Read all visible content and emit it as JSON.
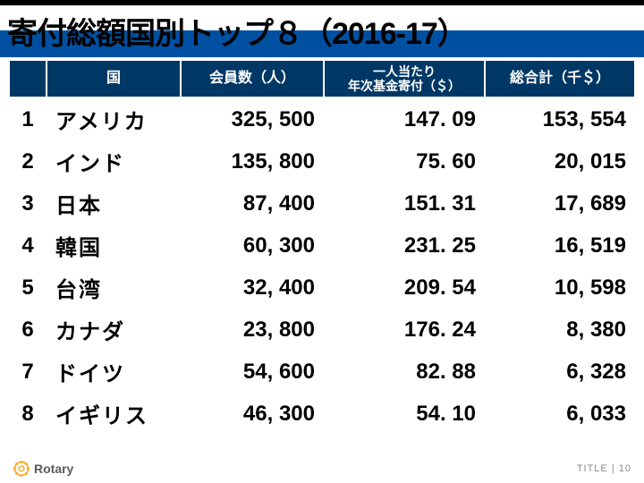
{
  "title": "寄付総額国別トップ８（2016-17）",
  "columns": {
    "rank": "",
    "country": "国",
    "members": "会員数（人）",
    "percap_l1": "一人当たり",
    "percap_l2": "年次基金寄付（＄）",
    "total": "総合計（千＄）"
  },
  "rows": [
    {
      "rank": "1",
      "country": "アメリカ",
      "members": "325, 500",
      "percap": "147. 09",
      "total": "153, 554"
    },
    {
      "rank": "2",
      "country": "インド",
      "members": "135, 800",
      "percap": "75. 60",
      "total": "20, 015"
    },
    {
      "rank": "3",
      "country": "日本",
      "members": "87, 400",
      "percap": "151. 31",
      "total": "17, 689"
    },
    {
      "rank": "4",
      "country": "韓国",
      "members": "60, 300",
      "percap": "231. 25",
      "total": "16, 519"
    },
    {
      "rank": "5",
      "country": "台湾",
      "members": "32, 400",
      "percap": "209. 54",
      "total": "10, 598"
    },
    {
      "rank": "6",
      "country": "カナダ",
      "members": "23, 800",
      "percap": "176. 24",
      "total": "8, 380"
    },
    {
      "rank": "7",
      "country": "ドイツ",
      "members": "54, 600",
      "percap": "82. 88",
      "total": "6, 328"
    },
    {
      "rank": "8",
      "country": "イギリス",
      "members": "46, 300",
      "percap": "54. 10",
      "total": "6, 033"
    }
  ],
  "footer": {
    "brand": "Rotary",
    "page_label": "TITLE",
    "page_sep": "|",
    "page_num": "10"
  },
  "colors": {
    "header_bg": "#003865",
    "title_blue": "#0050a2",
    "text": "#000000",
    "footer_gray": "#8a8a8a",
    "rotary_gold": "#f7a81b"
  }
}
